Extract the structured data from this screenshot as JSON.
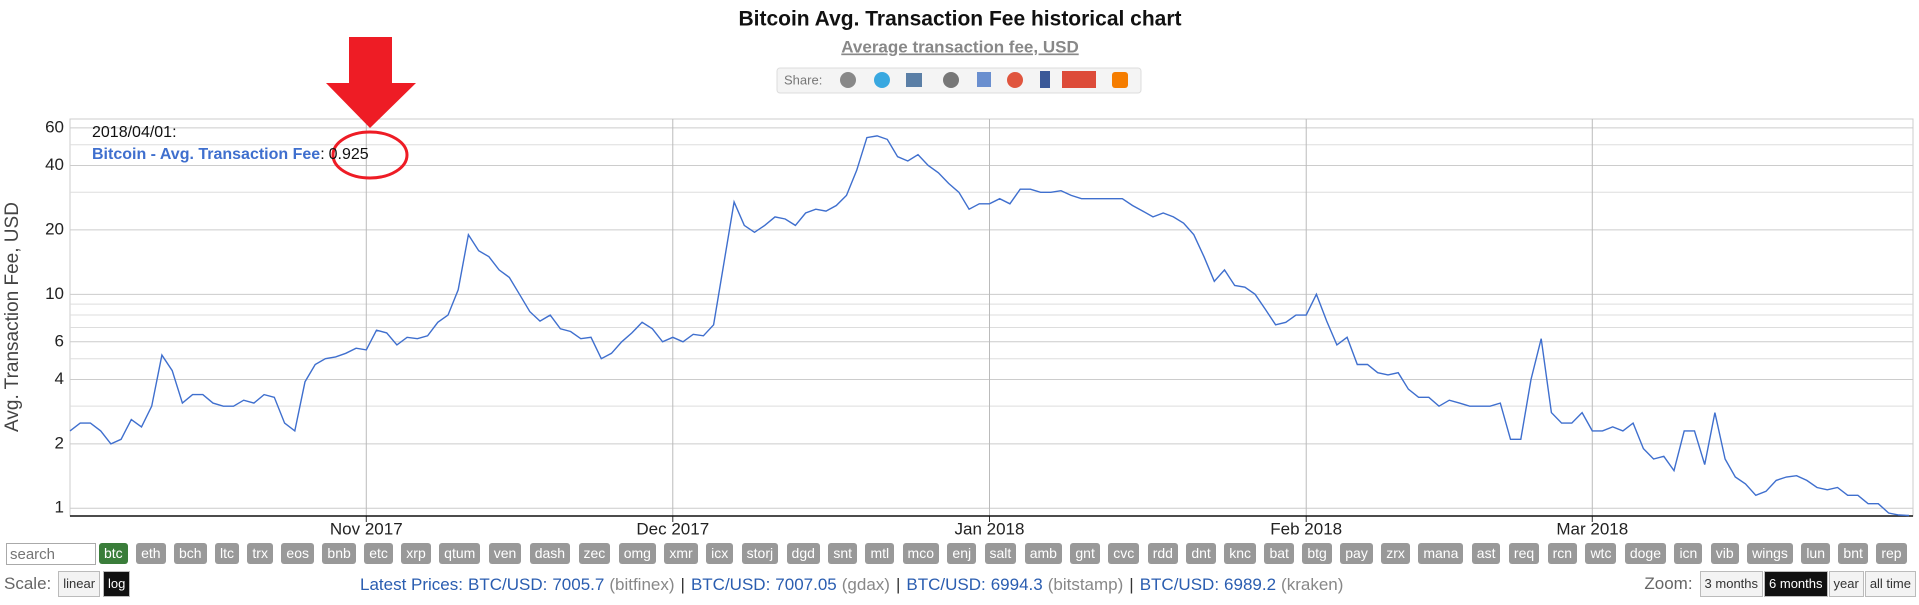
{
  "chart_data": {
    "type": "line",
    "title": "Bitcoin Avg. Transaction Fee historical chart",
    "subtitle": "Average transaction fee, USD",
    "ylabel": "Avg. Transaction Fee, USD",
    "log_y": true,
    "grid": true,
    "x": [
      "2017/10/03",
      "2017/10/04",
      "2017/10/05",
      "2017/10/06",
      "2017/10/07",
      "2017/10/08",
      "2017/10/09",
      "2017/10/10",
      "2017/10/11",
      "2017/10/12",
      "2017/10/13",
      "2017/10/14",
      "2017/10/15",
      "2017/10/16",
      "2017/10/17",
      "2017/10/18",
      "2017/10/19",
      "2017/10/20",
      "2017/10/21",
      "2017/10/22",
      "2017/10/23",
      "2017/10/24",
      "2017/10/25",
      "2017/10/26",
      "2017/10/27",
      "2017/10/28",
      "2017/10/29",
      "2017/10/30",
      "2017/10/31",
      "2017/11/01",
      "2017/11/02",
      "2017/11/03",
      "2017/11/04",
      "2017/11/05",
      "2017/11/06",
      "2017/11/07",
      "2017/11/08",
      "2017/11/09",
      "2017/11/10",
      "2017/11/11",
      "2017/11/12",
      "2017/11/13",
      "2017/11/14",
      "2017/11/15",
      "2017/11/16",
      "2017/11/17",
      "2017/11/18",
      "2017/11/19",
      "2017/11/20",
      "2017/11/21",
      "2017/11/22",
      "2017/11/23",
      "2017/11/24",
      "2017/11/25",
      "2017/11/26",
      "2017/11/27",
      "2017/11/28",
      "2017/11/29",
      "2017/11/30",
      "2017/12/01",
      "2017/12/02",
      "2017/12/03",
      "2017/12/04",
      "2017/12/05",
      "2017/12/06",
      "2017/12/07",
      "2017/12/08",
      "2017/12/09",
      "2017/12/10",
      "2017/12/11",
      "2017/12/12",
      "2017/12/13",
      "2017/12/14",
      "2017/12/15",
      "2017/12/16",
      "2017/12/17",
      "2017/12/18",
      "2017/12/19",
      "2017/12/20",
      "2017/12/21",
      "2017/12/22",
      "2017/12/23",
      "2017/12/24",
      "2017/12/25",
      "2017/12/26",
      "2017/12/27",
      "2017/12/28",
      "2017/12/29",
      "2017/12/30",
      "2017/12/31",
      "2018/01/01",
      "2018/01/02",
      "2018/01/03",
      "2018/01/04",
      "2018/01/05",
      "2018/01/06",
      "2018/01/07",
      "2018/01/08",
      "2018/01/09",
      "2018/01/10",
      "2018/01/11",
      "2018/01/12",
      "2018/01/13",
      "2018/01/14",
      "2018/01/15",
      "2018/01/16",
      "2018/01/17",
      "2018/01/18",
      "2018/01/19",
      "2018/01/20",
      "2018/01/21",
      "2018/01/22",
      "2018/01/23",
      "2018/01/24",
      "2018/01/25",
      "2018/01/26",
      "2018/01/27",
      "2018/01/28",
      "2018/01/29",
      "2018/01/30",
      "2018/01/31",
      "2018/02/01",
      "2018/02/02",
      "2018/02/03",
      "2018/02/04",
      "2018/02/05",
      "2018/02/06",
      "2018/02/07",
      "2018/02/08",
      "2018/02/09",
      "2018/02/10",
      "2018/02/11",
      "2018/02/12",
      "2018/02/13",
      "2018/02/14",
      "2018/02/15",
      "2018/02/16",
      "2018/02/17",
      "2018/02/18",
      "2018/02/19",
      "2018/02/20",
      "2018/02/21",
      "2018/02/22",
      "2018/02/23",
      "2018/02/24",
      "2018/02/25",
      "2018/02/26",
      "2018/02/27",
      "2018/02/28",
      "2018/03/01",
      "2018/03/02",
      "2018/03/03",
      "2018/03/04",
      "2018/03/05",
      "2018/03/06",
      "2018/03/07",
      "2018/03/08",
      "2018/03/09",
      "2018/03/10",
      "2018/03/11",
      "2018/03/12",
      "2018/03/13",
      "2018/03/14",
      "2018/03/15",
      "2018/03/16",
      "2018/03/17",
      "2018/03/18",
      "2018/03/19",
      "2018/03/20",
      "2018/03/21",
      "2018/03/22",
      "2018/03/23",
      "2018/03/24",
      "2018/03/25",
      "2018/03/26",
      "2018/03/27",
      "2018/03/28",
      "2018/03/29",
      "2018/03/30",
      "2018/03/31",
      "2018/04/01"
    ],
    "series": [
      {
        "name": "Bitcoin - Avg. Transaction Fee",
        "color": "#3f6fce",
        "values": [
          2.3,
          2.5,
          2.5,
          2.3,
          2.0,
          2.1,
          2.6,
          2.4,
          3.0,
          5.2,
          4.4,
          3.1,
          3.4,
          3.4,
          3.1,
          3.0,
          3.0,
          3.2,
          3.1,
          3.4,
          3.3,
          2.5,
          2.3,
          3.9,
          4.7,
          5.0,
          5.1,
          5.3,
          5.6,
          5.5,
          6.8,
          6.6,
          5.8,
          6.3,
          6.2,
          6.4,
          7.4,
          8.0,
          10.5,
          19,
          16,
          15,
          13,
          12,
          10,
          8.3,
          7.5,
          8.0,
          6.9,
          6.7,
          6.2,
          6.3,
          5.0,
          5.3,
          6.0,
          6.6,
          7.4,
          6.9,
          6.0,
          6.3,
          6.0,
          6.5,
          6.4,
          7.2,
          14,
          27,
          21,
          19.5,
          21,
          23,
          22.5,
          21,
          24,
          25,
          24.5,
          26,
          29,
          38,
          54,
          55,
          53,
          44,
          42,
          45,
          40,
          37,
          33,
          30,
          25,
          26.5,
          26.5,
          28,
          26.5,
          31,
          31,
          30,
          30,
          30.5,
          29,
          28,
          28,
          28,
          28,
          28,
          26,
          24.5,
          23,
          24,
          23,
          21.5,
          19,
          15,
          11.5,
          13,
          11,
          10.8,
          10,
          8.5,
          7.2,
          7.4,
          8.0,
          8.0,
          10,
          7.5,
          5.8,
          6.3,
          4.7,
          4.7,
          4.3,
          4.2,
          4.3,
          3.6,
          3.3,
          3.3,
          3.0,
          3.2,
          3.1,
          3.0,
          3.0,
          3.0,
          3.1,
          2.1,
          2.1,
          4.0,
          6.2,
          2.8,
          2.5,
          2.5,
          2.8,
          2.3,
          2.3,
          2.4,
          2.3,
          2.5,
          1.9,
          1.7,
          1.75,
          1.5,
          2.3,
          2.3,
          1.6,
          2.8,
          1.7,
          1.4,
          1.3,
          1.15,
          1.2,
          1.35,
          1.4,
          1.42,
          1.35,
          1.25,
          1.22,
          1.25,
          1.15,
          1.15,
          1.05,
          1.05,
          0.95,
          0.93,
          0.925
        ]
      }
    ],
    "xlim": [
      "2017/10/03",
      "2018/04/01"
    ],
    "xticks": [
      {
        "value": "2017/11/01",
        "label": "Nov 2017"
      },
      {
        "value": "2017/12/01",
        "label": "Dec 2017"
      },
      {
        "value": "2018/01/01",
        "label": "Jan 2018"
      },
      {
        "value": "2018/02/01",
        "label": "Feb 2018"
      },
      {
        "value": "2018/03/01",
        "label": "Mar 2018"
      }
    ],
    "ylim": [
      0.92,
      66
    ],
    "yticks": [
      1,
      2,
      4,
      6,
      10,
      20,
      40,
      60
    ],
    "yminor": [
      3,
      5,
      7,
      8,
      9,
      30,
      50
    ],
    "tooltip": {
      "date": "2018/04/01:",
      "sep": ":"
    }
  },
  "controls": {
    "share": "Share:",
    "search": "search",
    "coins": [
      "btc",
      "eth",
      "bch",
      "ltc",
      "trx",
      "eos",
      "bnb",
      "etc",
      "xrp",
      "qtum",
      "ven",
      "dash",
      "zec",
      "omg",
      "xmr",
      "icx",
      "storj",
      "dgd",
      "snt",
      "mtl",
      "mco",
      "enj",
      "salt",
      "amb",
      "gnt",
      "cvc",
      "rdd",
      "dnt",
      "knc",
      "bat",
      "btg",
      "pay",
      "zrx",
      "mana",
      "ast",
      "req",
      "rcn",
      "wtc",
      "doge",
      "icn",
      "vib",
      "wings",
      "lun",
      "bnt",
      "rep"
    ],
    "active_coin": 0,
    "scale_label": "Scale:",
    "scales": [
      "linear",
      "log"
    ],
    "active_scale": 1,
    "prices_label": "Latest Prices:",
    "separator": "|",
    "prices": [
      {
        "pair": "BTC/USD:",
        "price": "7005.7",
        "exchange": "(bitfinex)"
      },
      {
        "pair": "BTC/USD:",
        "price": "7007.05",
        "exchange": "(gdax)"
      },
      {
        "pair": "BTC/USD:",
        "price": "6994.3",
        "exchange": "(bitstamp)"
      },
      {
        "pair": "BTC/USD:",
        "price": "6989.2",
        "exchange": "(kraken)"
      }
    ],
    "zoom_label": "Zoom:",
    "zooms": [
      "3 months",
      "6 months",
      "year",
      "all time"
    ],
    "active_zoom": 1
  }
}
